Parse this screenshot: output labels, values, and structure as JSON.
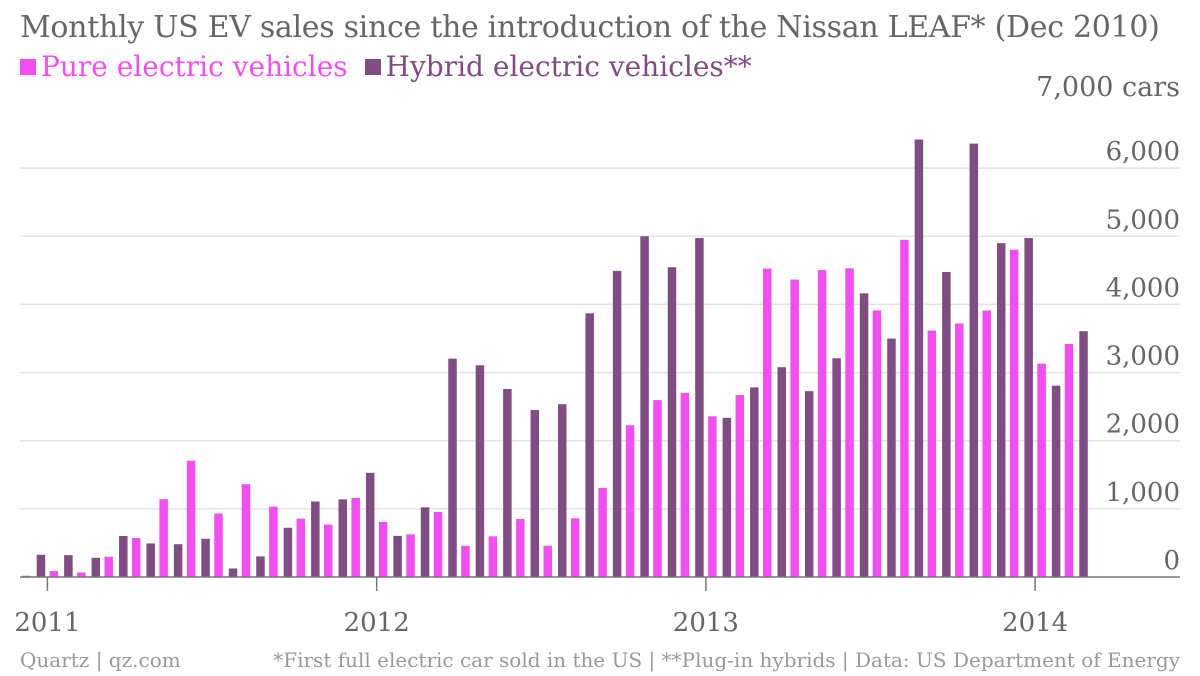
{
  "title": "Monthly US EV sales since the introduction of the Nissan LEAF* (Dec 2010)",
  "legend": [
    {
      "label": "Pure electric vehicles",
      "color": "#f24ff0"
    },
    {
      "label": "Hybrid electric vehicles**",
      "color": "#7f4c84"
    }
  ],
  "footer": {
    "source_left": "Quartz | qz.com",
    "note_right": "*First full electric car sold in the US | **Plug-in hybrids | Data: US Department of Energy"
  },
  "chart_data": {
    "type": "bar",
    "title": "Monthly US EV sales since the introduction of the Nissan LEAF* (Dec 2010)",
    "unit_label": "7,000 cars",
    "ylim": [
      0,
      7000
    ],
    "yticks": [
      "0",
      "1,000",
      "2,000",
      "3,000",
      "4,000",
      "5,000",
      "6,000"
    ],
    "xticks": [
      "2011",
      "2012",
      "2013",
      "2014"
    ],
    "grid": true,
    "legend_position": "top-left",
    "categories": [
      "Dec 2010",
      "Jan 2011",
      "Feb 2011",
      "Mar 2011",
      "Apr 2011",
      "May 2011",
      "Jun 2011",
      "Jul 2011",
      "Aug 2011",
      "Sep 2011",
      "Oct 2011",
      "Nov 2011",
      "Dec 2011",
      "Jan 2012",
      "Feb 2012",
      "Mar 2012",
      "Apr 2012",
      "May 2012",
      "Jun 2012",
      "Jul 2012",
      "Aug 2012",
      "Sep 2012",
      "Oct 2012",
      "Nov 2012",
      "Dec 2012",
      "Jan 2013",
      "Feb 2013",
      "Mar 2013",
      "Apr 2013",
      "May 2013",
      "Jun 2013",
      "Jul 2013",
      "Aug 2013",
      "Sep 2013",
      "Oct 2013",
      "Nov 2013",
      "Dec 2013",
      "Jan 2014",
      "Feb 2014"
    ],
    "series": [
      {
        "name": "Pure electric vehicles",
        "color": "#f24ff0",
        "values": [
          19,
          87,
          67,
          298,
          573,
          1142,
          1708,
          931,
          1362,
          1031,
          856,
          769,
          1160,
          809,
          626,
          955,
          458,
          597,
          851,
          459,
          861,
          1308,
          2227,
          2596,
          2702,
          2358,
          2670,
          4526,
          4365,
          4504,
          4530,
          3913,
          4948,
          3617,
          3721,
          3910,
          4803,
          3131,
          3420
        ]
      },
      {
        "name": "Hybrid electric vehicles**",
        "color": "#7f4c84",
        "values": [
          326,
          321,
          281,
          602,
          493,
          481,
          561,
          125,
          302,
          723,
          1108,
          1139,
          1529,
          603,
          1023,
          3204,
          3107,
          2759,
          2451,
          2536,
          3870,
          4492,
          5000,
          4546,
          4974,
          2336,
          2783,
          3079,
          2727,
          3210,
          4163,
          3499,
          6420,
          4476,
          6360,
          4899,
          4975,
          2807,
          3607
        ]
      }
    ]
  }
}
